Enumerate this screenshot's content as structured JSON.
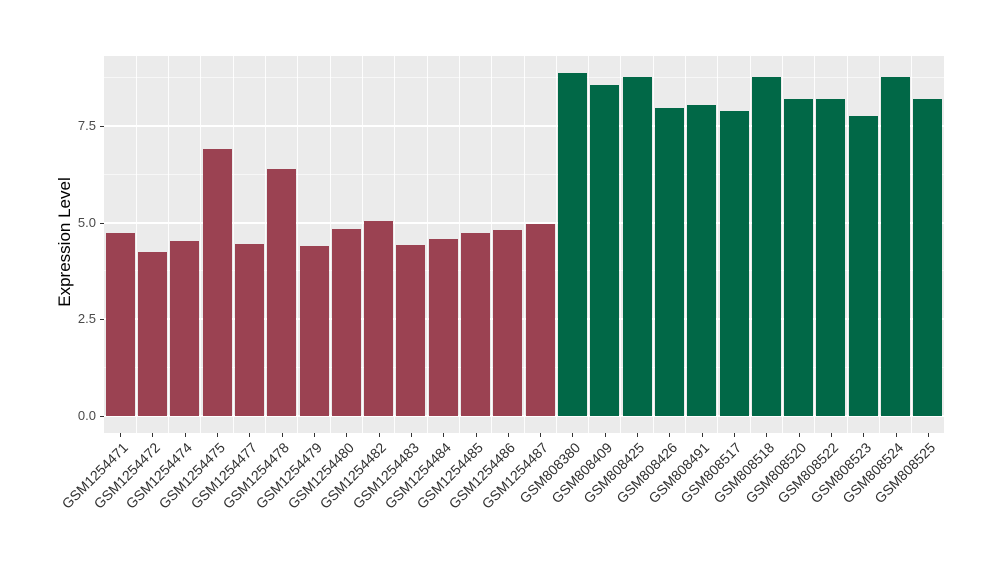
{
  "figure": {
    "y_axis_title": "Expression Level",
    "y_tick_labels": [
      "0.0",
      "2.5",
      "5.0",
      "7.5"
    ],
    "panel_background": "#EBEBEB",
    "gridline_color": "#FFFFFF",
    "text_color": "#303030"
  },
  "chart_data": {
    "type": "bar",
    "title": "",
    "xlabel": "",
    "ylabel": "Expression Level",
    "ylim": [
      0,
      9.3
    ],
    "yticks": [
      0,
      2.5,
      5.0,
      7.5
    ],
    "minor_yticks": [
      1.25,
      3.75,
      6.25,
      8.75
    ],
    "grid": "on",
    "legend": "none",
    "x_label_rotation_deg": 45,
    "groups": {
      "group1": {
        "color": "#9B4252"
      },
      "group2": {
        "color": "#016847"
      }
    },
    "categories": [
      "GSM1254471",
      "GSM1254472",
      "GSM1254474",
      "GSM1254475",
      "GSM1254477",
      "GSM1254478",
      "GSM1254479",
      "GSM1254480",
      "GSM1254482",
      "GSM1254483",
      "GSM1254484",
      "GSM1254485",
      "GSM1254486",
      "GSM1254487",
      "GSM808380",
      "GSM808409",
      "GSM808425",
      "GSM808426",
      "GSM808491",
      "GSM808517",
      "GSM808518",
      "GSM808520",
      "GSM808522",
      "GSM808523",
      "GSM808524",
      "GSM808525"
    ],
    "bars": [
      {
        "label": "GSM1254471",
        "value": 4.73,
        "group": "group1"
      },
      {
        "label": "GSM1254472",
        "value": 4.24,
        "group": "group1"
      },
      {
        "label": "GSM1254474",
        "value": 4.53,
        "group": "group1"
      },
      {
        "label": "GSM1254475",
        "value": 6.89,
        "group": "group1"
      },
      {
        "label": "GSM1254477",
        "value": 4.44,
        "group": "group1"
      },
      {
        "label": "GSM1254478",
        "value": 6.37,
        "group": "group1"
      },
      {
        "label": "GSM1254479",
        "value": 4.38,
        "group": "group1"
      },
      {
        "label": "GSM1254480",
        "value": 4.84,
        "group": "group1"
      },
      {
        "label": "GSM1254482",
        "value": 5.05,
        "group": "group1"
      },
      {
        "label": "GSM1254483",
        "value": 4.43,
        "group": "group1"
      },
      {
        "label": "GSM1254484",
        "value": 4.57,
        "group": "group1"
      },
      {
        "label": "GSM1254485",
        "value": 4.73,
        "group": "group1"
      },
      {
        "label": "GSM1254486",
        "value": 4.8,
        "group": "group1"
      },
      {
        "label": "GSM1254487",
        "value": 4.97,
        "group": "group1"
      },
      {
        "label": "GSM808380",
        "value": 8.86,
        "group": "group2"
      },
      {
        "label": "GSM808409",
        "value": 8.56,
        "group": "group2"
      },
      {
        "label": "GSM808425",
        "value": 8.76,
        "group": "group2"
      },
      {
        "label": "GSM808426",
        "value": 7.97,
        "group": "group2"
      },
      {
        "label": "GSM808491",
        "value": 8.03,
        "group": "group2"
      },
      {
        "label": "GSM808517",
        "value": 7.88,
        "group": "group2"
      },
      {
        "label": "GSM808518",
        "value": 8.75,
        "group": "group2"
      },
      {
        "label": "GSM808520",
        "value": 8.18,
        "group": "group2"
      },
      {
        "label": "GSM808522",
        "value": 8.19,
        "group": "group2"
      },
      {
        "label": "GSM808523",
        "value": 7.75,
        "group": "group2"
      },
      {
        "label": "GSM808524",
        "value": 8.76,
        "group": "group2"
      },
      {
        "label": "GSM808525",
        "value": 8.2,
        "group": "group2"
      }
    ]
  }
}
